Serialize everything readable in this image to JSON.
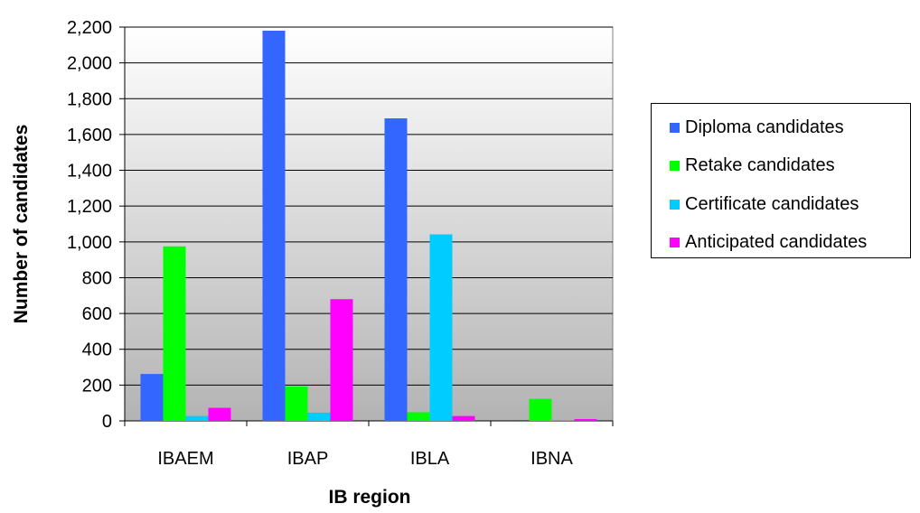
{
  "chart_data": {
    "type": "bar",
    "title": "",
    "xlabel": "IB region",
    "ylabel": "Number of candidates",
    "categories": [
      "IBAEM",
      "IBAP",
      "IBLA",
      "IBNA"
    ],
    "series": [
      {
        "name": "Diploma candidates",
        "color": "#3366ff",
        "values": [
          262,
          2180,
          1690,
          0
        ]
      },
      {
        "name": "Retake candidates",
        "color": "#00ff00",
        "values": [
          975,
          192,
          48,
          123
        ]
      },
      {
        "name": "Certificate candidates",
        "color": "#00ccff",
        "values": [
          27,
          46,
          1042,
          5
        ]
      },
      {
        "name": "Anticipated candidates",
        "color": "#ff00ff",
        "values": [
          73,
          680,
          27,
          10
        ]
      }
    ],
    "ylim": [
      0,
      2200
    ],
    "y_ticks": [
      "0",
      "200",
      "400",
      "600",
      "800",
      "1,000",
      "1,200",
      "1,400",
      "1,600",
      "1,800",
      "2,000",
      "2,200"
    ],
    "y_tick_values": [
      0,
      200,
      400,
      600,
      800,
      1000,
      1200,
      1400,
      1600,
      1800,
      2000,
      2200
    ],
    "grid": true,
    "legend_position": "right",
    "plot_background": "gradient gray"
  }
}
